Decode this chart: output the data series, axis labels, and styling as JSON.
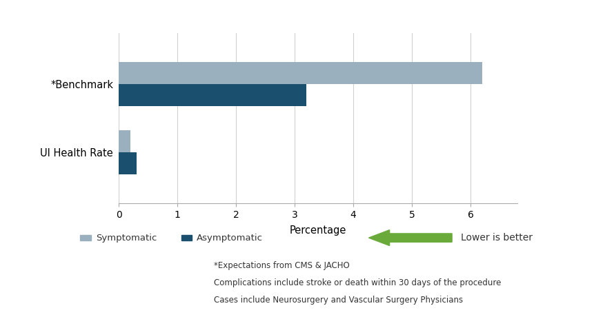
{
  "categories": [
    "UI Health Rate",
    "*Benchmark"
  ],
  "symptomatic_values": [
    0.2,
    6.2
  ],
  "asymptomatic_values": [
    0.3,
    3.2
  ],
  "symptomatic_color": "#9ab0be",
  "asymptomatic_color": "#1a506e",
  "xlabel": "Percentage",
  "xlim": [
    0,
    6.8
  ],
  "xticks": [
    0,
    1,
    2,
    3,
    4,
    5,
    6
  ],
  "bar_height": 0.32,
  "legend_symptomatic": "Symptomatic",
  "legend_asymptomatic": "Asymptomatic",
  "arrow_text": "Lower is better",
  "footer_lines": [
    "*Expectations from CMS & JACHO",
    "Complications include stroke or death within 30 days of the procedure",
    "Cases include Neurosurgery and Vascular Surgery Physicians"
  ],
  "background_color": "#ffffff",
  "grid_color": "#d0d0d0",
  "arrow_color": "#6aaa3a"
}
